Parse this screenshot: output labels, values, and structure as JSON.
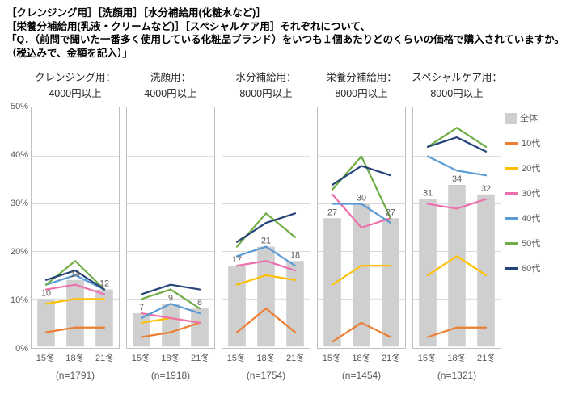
{
  "header": {
    "line1": "［クレンジング用］［洗顔用］［水分補給用(化粧水など)］",
    "line2": "［栄養分補給用(乳液・クリームなど)］［スペシャルケア用］それぞれについて、",
    "line3": "「Q．（前問で聞いた一番多く使用している化粧品ブランド）をいつも１個あたりどのくらいの価格で購入されていますか。",
    "line4": "（税込みで、金額を記入）」"
  },
  "legend": [
    {
      "label": "全体",
      "color": "#cfcfcf",
      "type": "bar"
    },
    {
      "label": "10代",
      "color": "#ED7D31",
      "type": "line"
    },
    {
      "label": "20代",
      "color": "#FFC000",
      "type": "line"
    },
    {
      "label": "30代",
      "color": "#EE6FAE",
      "type": "line"
    },
    {
      "label": "40代",
      "color": "#5B9BD5",
      "type": "line"
    },
    {
      "label": "50代",
      "color": "#70AD47",
      "type": "line"
    },
    {
      "label": "60代",
      "color": "#264478",
      "type": "line"
    }
  ],
  "chart_data": {
    "type": "bar",
    "note": "grouped panels: gray bars = 全体, colored lines = age groups",
    "categories": [
      "15冬",
      "18冬",
      "21冬"
    ],
    "ylim": [
      0,
      50
    ],
    "yticks": [
      "0%",
      "10%",
      "20%",
      "30%",
      "40%",
      "50%"
    ],
    "grid": true,
    "legend_position": "right",
    "panels": [
      {
        "title": "クレンジング用：",
        "subtitle": "4000円以上",
        "n": "(n=1791)",
        "bars": {
          "name": "全体",
          "values": [
            10,
            14,
            12
          ]
        },
        "series": [
          {
            "name": "10代",
            "values": [
              3,
              4,
              4
            ]
          },
          {
            "name": "20代",
            "values": [
              9,
              10,
              10
            ]
          },
          {
            "name": "30代",
            "values": [
              12,
              13,
              11
            ]
          },
          {
            "name": "40代",
            "values": [
              13,
              15,
              12
            ]
          },
          {
            "name": "50代",
            "values": [
              13,
              18,
              12
            ]
          },
          {
            "name": "60代",
            "values": [
              14,
              16,
              12
            ]
          }
        ]
      },
      {
        "title": "洗顔用：",
        "subtitle": "4000円以上",
        "n": "(n=1918)",
        "bars": {
          "name": "全体",
          "values": [
            7,
            9,
            8
          ]
        },
        "series": [
          {
            "name": "10代",
            "values": [
              2,
              3,
              5
            ]
          },
          {
            "name": "20代",
            "values": [
              5,
              6,
              5
            ]
          },
          {
            "name": "30代",
            "values": [
              7,
              6,
              5
            ]
          },
          {
            "name": "40代",
            "values": [
              6,
              9,
              7
            ]
          },
          {
            "name": "50代",
            "values": [
              10,
              12,
              8
            ]
          },
          {
            "name": "60代",
            "values": [
              11,
              13,
              12
            ]
          }
        ]
      },
      {
        "title": "水分補給用：",
        "subtitle": "8000円以上",
        "n": "(n=1754)",
        "bars": {
          "name": "全体",
          "values": [
            17,
            21,
            18
          ]
        },
        "series": [
          {
            "name": "10代",
            "values": [
              3,
              8,
              3
            ]
          },
          {
            "name": "20代",
            "values": [
              13,
              15,
              14
            ]
          },
          {
            "name": "30代",
            "values": [
              17,
              18,
              16
            ]
          },
          {
            "name": "40代",
            "values": [
              19,
              21,
              17
            ]
          },
          {
            "name": "50代",
            "values": [
              21,
              28,
              23
            ]
          },
          {
            "name": "60代",
            "values": [
              22,
              26,
              28
            ]
          }
        ]
      },
      {
        "title": "栄養分補給用：",
        "subtitle": "8000円以上",
        "n": "(n=1454)",
        "bars": {
          "name": "全体",
          "values": [
            27,
            30,
            27
          ]
        },
        "series": [
          {
            "name": "10代",
            "values": [
              1,
              5,
              2
            ]
          },
          {
            "name": "20代",
            "values": [
              13,
              17,
              17
            ]
          },
          {
            "name": "30代",
            "values": [
              32,
              25,
              27
            ]
          },
          {
            "name": "40代",
            "values": [
              30,
              30,
              26
            ]
          },
          {
            "name": "50代",
            "values": [
              33,
              40,
              27
            ]
          },
          {
            "name": "60代",
            "values": [
              34,
              38,
              36
            ]
          }
        ]
      },
      {
        "title": "スペシャルケア用：",
        "subtitle": "8000円以上",
        "n": "(n=1321)",
        "bars": {
          "name": "全体",
          "values": [
            31,
            34,
            32
          ]
        },
        "series": [
          {
            "name": "10代",
            "values": [
              2,
              4,
              4
            ]
          },
          {
            "name": "20代",
            "values": [
              15,
              19,
              15
            ]
          },
          {
            "name": "30代",
            "values": [
              30,
              29,
              31
            ]
          },
          {
            "name": "40代",
            "values": [
              40,
              37,
              36
            ]
          },
          {
            "name": "50代",
            "values": [
              42,
              46,
              42
            ]
          },
          {
            "name": "60代",
            "values": [
              42,
              44,
              41
            ]
          }
        ]
      }
    ]
  }
}
